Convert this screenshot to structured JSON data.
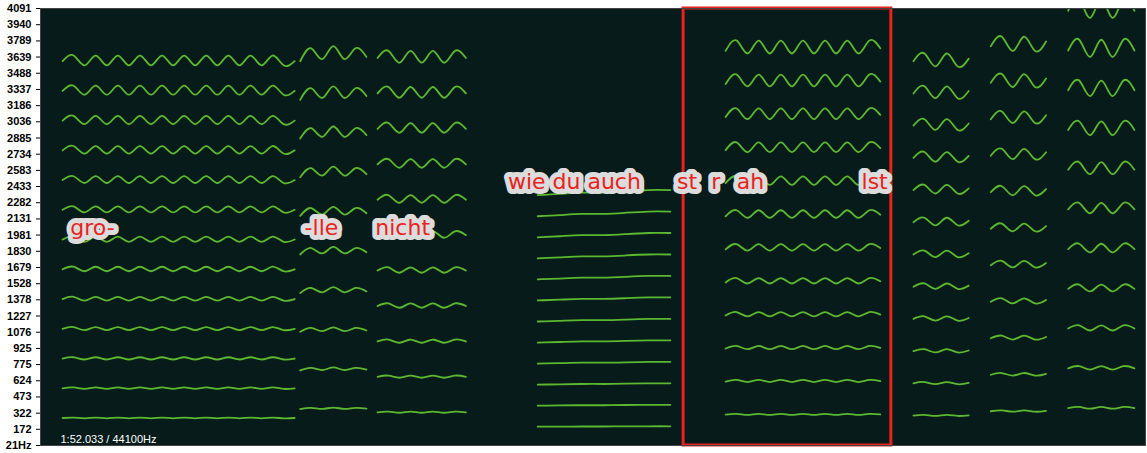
{
  "chart_data": {
    "type": "spectrogram",
    "xlim": [
      0,
      100
    ],
    "ylim": [
      21,
      4091
    ],
    "yticks": [
      4091,
      3940,
      3789,
      3639,
      3488,
      3337,
      3186,
      3036,
      2885,
      2734,
      2583,
      2433,
      2282,
      2131,
      1981,
      1830,
      1679,
      1528,
      1378,
      1227,
      1076,
      925,
      775,
      624,
      473,
      322,
      172,
      {
        "value": 21,
        "label": "21Hz"
      }
    ],
    "tick_labels": "y",
    "color": "#5cb830",
    "notes": [
      {
        "x": [
          2,
          3,
          4,
          5,
          6,
          7,
          8,
          9,
          10,
          11,
          12,
          13,
          14,
          15,
          16,
          17,
          18,
          19,
          20,
          21,
          22,
          23
        ],
        "f0": [
          277,
          281,
          274,
          281,
          274,
          281,
          274,
          281,
          274,
          281,
          274,
          281,
          274,
          281,
          274,
          281,
          274,
          281,
          274,
          281,
          274,
          277
        ],
        "harmonics": 13
      },
      {
        "x": [
          23.5,
          24.5,
          25.5,
          26.5,
          27.5,
          28.5,
          29.5
        ],
        "f0": [
          360,
          372,
          362,
          374,
          362,
          372,
          364
        ],
        "harmonics": 10
      },
      {
        "x": [
          30.5,
          31.5,
          32.5,
          33.5,
          34.5,
          35.5,
          36.5,
          37.5,
          38.5
        ],
        "f0": [
          330,
          336,
          326,
          336,
          326,
          336,
          326,
          336,
          330
        ],
        "harmonics": 11
      },
      {
        "x": [
          45,
          47,
          49,
          51,
          53,
          55,
          57
        ],
        "f0": [
          196,
          197,
          198,
          198,
          199,
          200,
          200
        ],
        "harmonics": 12
      },
      {
        "x": [
          62,
          63,
          64,
          65,
          66,
          67,
          68,
          69,
          70,
          71,
          72,
          73,
          74,
          75,
          76
        ],
        "f0": [
          308,
          316,
          306,
          316,
          306,
          316,
          306,
          316,
          306,
          316,
          306,
          316,
          306,
          316,
          310
        ],
        "harmonics": 12
      },
      {
        "x": [
          79,
          80,
          81,
          82,
          83,
          84
        ],
        "f0": [
          300,
          306,
          296,
          306,
          296,
          302
        ],
        "harmonics": 12
      },
      {
        "x": [
          86,
          87,
          88,
          89,
          90,
          91
        ],
        "f0": [
          340,
          348,
          336,
          348,
          336,
          344
        ],
        "harmonics": 11
      },
      {
        "x": [
          93,
          94,
          95,
          96,
          97,
          98,
          99
        ],
        "f0": [
          370,
          380,
          364,
          380,
          364,
          380,
          370
        ],
        "harmonics": 11
      }
    ],
    "annotations": [
      {
        "text": "gro-",
        "x": 2.7,
        "y": 2050
      },
      {
        "text": "-lle",
        "x": 23.9,
        "y": 2050
      },
      {
        "text": "nicht",
        "x": 30.3,
        "y": 2050
      },
      {
        "text": "wie du auch",
        "x": 42.3,
        "y": 2475
      },
      {
        "text": "st",
        "x": 57.6,
        "y": 2475
      },
      {
        "text": "r",
        "x": 60.7,
        "y": 2475
      },
      {
        "text": "ah",
        "x": 63.0,
        "y": 2475
      },
      {
        "text": "lst",
        "x": 74.3,
        "y": 2475
      }
    ],
    "annotation_color": "#e8231e",
    "highlight": {
      "x": [
        58.2,
        77.0
      ],
      "color": "#e8231e"
    },
    "time_label": "1:52.033 / 44100Hz"
  }
}
